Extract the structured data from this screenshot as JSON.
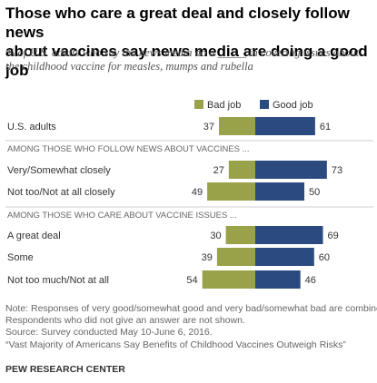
{
  "title_line1": "Those who care a great deal and closely follow news",
  "title_line2": "about vaccines say news media are doing a good job",
  "subtitle_line1": "% of U.S. adults who say the news media do a _____ in covering issues about",
  "subtitle_line2": "the childhood vaccine for measles, mumps and rubella",
  "note_lines": [
    "Note:  Responses of very good/somewhat good and very bad/somewhat bad are combined.",
    "Respondents who did not give an answer are not shown.",
    "Source: Survey conducted May 10-June 6, 2016.",
    "“Vast Majority of Americans Say Benefits of Childhood Vaccines Outweigh Risks”"
  ],
  "footer": "PEW RESEARCH CENTER",
  "chart_data": {
    "type": "bar",
    "orientation": "horizontal",
    "stacking": "diverging",
    "legend_position": "top",
    "series": [
      {
        "name": "Bad job",
        "color": "#9aa249"
      },
      {
        "name": "Good job",
        "color": "#2b4a80"
      }
    ],
    "groups": [
      {
        "label": "",
        "rows": [
          {
            "label": "U.S. adults",
            "bad": 37,
            "good": 61
          }
        ]
      },
      {
        "label": "AMONG THOSE WHO FOLLOW NEWS ABOUT VACCINES ...",
        "rows": [
          {
            "label": "Very/Somewhat closely",
            "bad": 27,
            "good": 73
          },
          {
            "label": "Not too/Not at all closely",
            "bad": 49,
            "good": 50
          }
        ]
      },
      {
        "label": "AMONG THOSE WHO CARE ABOUT VACCINE ISSUES ...",
        "rows": [
          {
            "label": "A great deal",
            "bad": 30,
            "good": 69
          },
          {
            "label": "Some",
            "bad": 39,
            "good": 60
          },
          {
            "label": "Not too much/Not at all",
            "bad": 54,
            "good": 46
          }
        ]
      }
    ]
  }
}
